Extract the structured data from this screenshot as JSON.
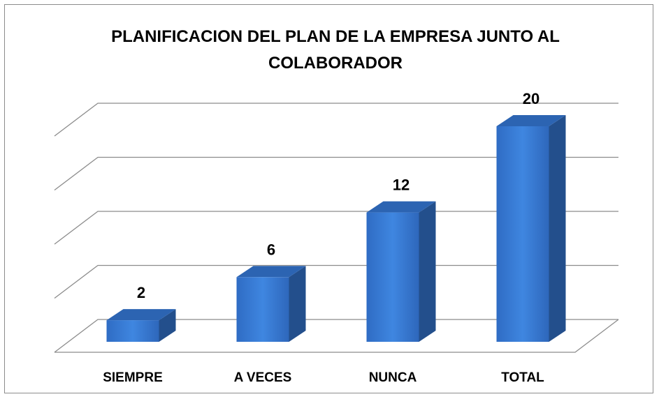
{
  "chart_data": {
    "type": "bar3d",
    "title": "PLANIFICACION DEL PLAN DE LA EMPRESA JUNTO AL COLABORADOR",
    "categories": [
      "SIEMPRE",
      "A VECES",
      "NUNCA",
      "TOTAL"
    ],
    "values": [
      2,
      6,
      12,
      20
    ],
    "color": "#3b7dd8",
    "ylim": [
      0,
      20
    ],
    "yticks": [
      0,
      5,
      10,
      15,
      20
    ],
    "grid": true
  }
}
